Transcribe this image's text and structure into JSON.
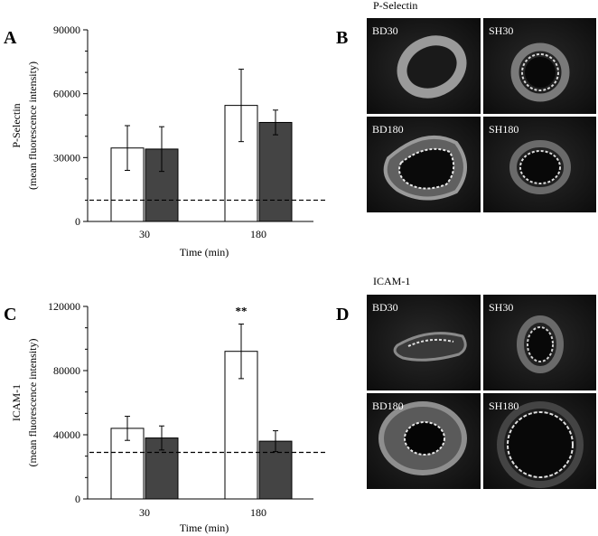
{
  "figure": {
    "panels": {
      "A": "A",
      "B": "B",
      "C": "C",
      "D": "D"
    },
    "micrographs": {
      "top": {
        "title": "P-Selectin",
        "labels": [
          "BD30",
          "SH30",
          "BD180",
          "SH180"
        ]
      },
      "bottom": {
        "title": "ICAM-1",
        "labels": [
          "BD30",
          "SH30",
          "BD180",
          "SH180"
        ]
      }
    }
  },
  "chart_data": [
    {
      "type": "bar",
      "panel": "A",
      "ylabel_line1": "P-Selectin",
      "ylabel_line2": "(mean fluorescence intensity)",
      "xlabel": "Time (min)",
      "categories": [
        "30",
        "180"
      ],
      "ylim": [
        0,
        90000
      ],
      "yticks": [
        0,
        30000,
        60000,
        90000
      ],
      "ytick_labels": [
        "0",
        "30000",
        "60000",
        "90000"
      ],
      "baseline": 10000,
      "series": [
        {
          "style": "open",
          "color": "#ffffff",
          "values": [
            34500,
            54500
          ],
          "errors": [
            10500,
            17000
          ]
        },
        {
          "style": "filled",
          "color": "#444444",
          "values": [
            34000,
            46500
          ],
          "errors": [
            10500,
            5800
          ]
        }
      ],
      "annotations": []
    },
    {
      "type": "bar",
      "panel": "C",
      "ylabel_line1": "ICAM-1",
      "ylabel_line2": "(mean fluorescence intensity)",
      "xlabel": "Time (min)",
      "categories": [
        "30",
        "180"
      ],
      "ylim": [
        0,
        120000
      ],
      "yticks": [
        0,
        40000,
        80000,
        120000
      ],
      "ytick_labels": [
        "0",
        "40000",
        "80000",
        "120000"
      ],
      "baseline": 29000,
      "series": [
        {
          "style": "open",
          "color": "#ffffff",
          "values": [
            44000,
            92000
          ],
          "errors": [
            7500,
            17000
          ]
        },
        {
          "style": "filled",
          "color": "#444444",
          "values": [
            38000,
            36000
          ],
          "errors": [
            7500,
            6500
          ]
        }
      ],
      "annotations": [
        {
          "category": "180",
          "text": "**"
        }
      ]
    }
  ]
}
